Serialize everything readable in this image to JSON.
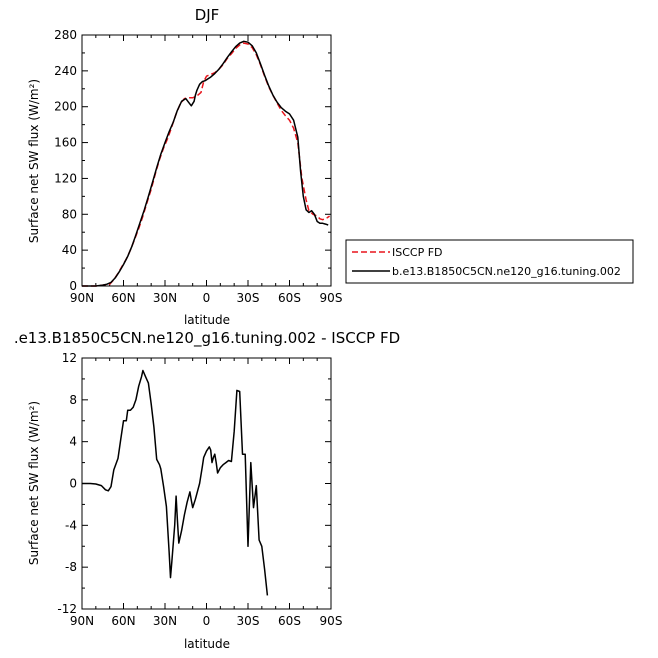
{
  "chart_data": [
    {
      "type": "line",
      "title": "DJF",
      "xlabel": "latitude",
      "ylabel": "Surface net SW flux (W/m²)",
      "xlim": [
        90,
        -90
      ],
      "ylim": [
        0,
        280
      ],
      "x_ticks": [
        "90N",
        "60N",
        "30N",
        "0",
        "30S",
        "60S",
        "90S"
      ],
      "y_ticks": [
        "0",
        "40",
        "80",
        "120",
        "160",
        "200",
        "240",
        "280"
      ],
      "grid": false,
      "legend_position": "right-bottom, outside plot",
      "series": [
        {
          "name": "ISCCP FD",
          "color": "#e8141b",
          "dash": "dashed",
          "points": [
            [
              90,
              0
            ],
            [
              85,
              0
            ],
            [
              80,
              0
            ],
            [
              75,
              1
            ],
            [
              70,
              2
            ],
            [
              67,
              7
            ],
            [
              64,
              14
            ],
            [
              61,
              22
            ],
            [
              58,
              30
            ],
            [
              55,
              40
            ],
            [
              52,
              52
            ],
            [
              49,
              64
            ],
            [
              46,
              78
            ],
            [
              43,
              93
            ],
            [
              40,
              108
            ],
            [
              37,
              125
            ],
            [
              34,
              141
            ],
            [
              31,
              154
            ],
            [
              28,
              165
            ],
            [
              25,
              178
            ],
            [
              22,
              192
            ],
            [
              19,
              203
            ],
            [
              16,
              209
            ],
            [
              13,
              210
            ],
            [
              10,
              210
            ],
            [
              7,
              212
            ],
            [
              4,
              216
            ],
            [
              2,
              228
            ],
            [
              0,
              234
            ],
            [
              -3,
              236
            ],
            [
              -6,
              238
            ],
            [
              -9,
              242
            ],
            [
              -12,
              247
            ],
            [
              -15,
              254
            ],
            [
              -18,
              259
            ],
            [
              -21,
              265
            ],
            [
              -24,
              269
            ],
            [
              -27,
              271
            ],
            [
              -30,
              270
            ],
            [
              -33,
              266
            ],
            [
              -36,
              258
            ],
            [
              -39,
              247
            ],
            [
              -42,
              234
            ],
            [
              -45,
              222
            ],
            [
              -48,
              213
            ],
            [
              -51,
              204
            ],
            [
              -54,
              196
            ],
            [
              -57,
              190
            ],
            [
              -60,
              185
            ],
            [
              -63,
              176
            ],
            [
              -66,
              160
            ],
            [
              -69,
              120
            ],
            [
              -72,
              96
            ],
            [
              -74,
              84
            ],
            [
              -77,
              80
            ],
            [
              -80,
              78
            ],
            [
              -82,
              75
            ],
            [
              -84,
              74
            ],
            [
              -87,
              76
            ],
            [
              -89,
              78
            ]
          ]
        },
        {
          "name": "b.e13.B1850C5CN.ne120_g16.tuning.002",
          "color": "#000000",
          "dash": "solid",
          "points": [
            [
              90,
              0
            ],
            [
              85,
              0
            ],
            [
              80,
              0
            ],
            [
              75,
              1
            ],
            [
              72,
              2
            ],
            [
              69,
              4
            ],
            [
              66,
              9
            ],
            [
              63,
              16
            ],
            [
              60,
              24
            ],
            [
              57,
              33
            ],
            [
              54,
              44
            ],
            [
              51,
              57
            ],
            [
              48,
              71
            ],
            [
              45,
              85
            ],
            [
              42,
              100
            ],
            [
              39,
              116
            ],
            [
              36,
              132
            ],
            [
              33,
              147
            ],
            [
              30,
              160
            ],
            [
              27,
              172
            ],
            [
              24,
              183
            ],
            [
              21,
              196
            ],
            [
              18,
              206
            ],
            [
              15,
              209
            ],
            [
              13,
              205
            ],
            [
              11,
              201
            ],
            [
              9,
              206
            ],
            [
              8,
              213
            ],
            [
              7,
              218
            ],
            [
              5,
              225
            ],
            [
              3,
              228
            ],
            [
              1,
              229
            ],
            [
              -1,
              231
            ],
            [
              -3,
              233
            ],
            [
              -6,
              237
            ],
            [
              -9,
              242
            ],
            [
              -12,
              248
            ],
            [
              -15,
              255
            ],
            [
              -18,
              261
            ],
            [
              -21,
              267
            ],
            [
              -24,
              271
            ],
            [
              -27,
              273
            ],
            [
              -30,
              272
            ],
            [
              -33,
              268
            ],
            [
              -36,
              260
            ],
            [
              -39,
              248
            ],
            [
              -42,
              235
            ],
            [
              -45,
              223
            ],
            [
              -48,
              213
            ],
            [
              -51,
              205
            ],
            [
              -54,
              199
            ],
            [
              -57,
              195
            ],
            [
              -60,
              192
            ],
            [
              -63,
              185
            ],
            [
              -66,
              166
            ],
            [
              -68,
              128
            ],
            [
              -70,
              100
            ],
            [
              -72,
              85
            ],
            [
              -74,
              82
            ],
            [
              -76,
              84
            ],
            [
              -78,
              80
            ],
            [
              -80,
              72
            ],
            [
              -82,
              70
            ],
            [
              -84,
              70
            ],
            [
              -86,
              69
            ],
            [
              -88,
              68
            ]
          ]
        }
      ]
    },
    {
      "type": "line",
      "title": ".e13.B1850C5CN.ne120_g16.tuning.002 - ISCCP FD",
      "xlabel": "latitude",
      "ylabel": "Surface net SW flux (W/m²)",
      "xlim": [
        90,
        -90
      ],
      "ylim": [
        -12,
        12
      ],
      "x_ticks": [
        "90N",
        "60N",
        "30N",
        "0",
        "30S",
        "60S",
        "90S"
      ],
      "y_ticks": [
        "-12",
        "-8",
        "-4",
        "0",
        "4",
        "8",
        "12"
      ],
      "grid": false,
      "series": [
        {
          "color": "#000000",
          "dash": "solid",
          "points": [
            [
              90,
              0
            ],
            [
              84,
              0
            ],
            [
              80,
              -0.05
            ],
            [
              76,
              -0.2
            ],
            [
              73,
              -0.6
            ],
            [
              71,
              -0.7
            ],
            [
              69,
              -0.3
            ],
            [
              67,
              1.3
            ],
            [
              64,
              2.4
            ],
            [
              62,
              4.2
            ],
            [
              60,
              6
            ],
            [
              58,
              6
            ],
            [
              57,
              7
            ],
            [
              55,
              7
            ],
            [
              53,
              7.3
            ],
            [
              51,
              8
            ],
            [
              49,
              9.3
            ],
            [
              47,
              10.2
            ],
            [
              46,
              10.8
            ],
            [
              44,
              10.2
            ],
            [
              42,
              9.6
            ],
            [
              40,
              7.6
            ],
            [
              38,
              5.4
            ],
            [
              36,
              2.3
            ],
            [
              34,
              1.8
            ],
            [
              33,
              1.4
            ],
            [
              31,
              -0.3
            ],
            [
              29,
              -2.2
            ],
            [
              27,
              -6.5
            ],
            [
              26,
              -9
            ],
            [
              25,
              -7.4
            ],
            [
              23,
              -4
            ],
            [
              22,
              -1.2
            ],
            [
              21,
              -3.5
            ],
            [
              20,
              -5.7
            ],
            [
              18,
              -4.5
            ],
            [
              16,
              -3
            ],
            [
              14,
              -1.8
            ],
            [
              12,
              -0.8
            ],
            [
              11,
              -1.6
            ],
            [
              10,
              -2.3
            ],
            [
              8,
              -1.5
            ],
            [
              6,
              -0.5
            ],
            [
              5,
              0
            ],
            [
              3,
              1.6
            ],
            [
              2,
              2.5
            ],
            [
              0,
              3.1
            ],
            [
              -2,
              3.5
            ],
            [
              -3,
              3.2
            ],
            [
              -4,
              2
            ],
            [
              -5,
              2.5
            ],
            [
              -6,
              2.8
            ],
            [
              -7,
              2
            ],
            [
              -8,
              1
            ],
            [
              -10,
              1.5
            ],
            [
              -12,
              1.8
            ],
            [
              -14,
              2
            ],
            [
              -16,
              2.2
            ],
            [
              -18,
              2.1
            ],
            [
              -20,
              5
            ],
            [
              -22,
              8.9
            ],
            [
              -24,
              8.8
            ],
            [
              -26,
              2.8
            ],
            [
              -28,
              2.8
            ],
            [
              -30,
              -6
            ],
            [
              -32,
              2
            ],
            [
              -34,
              -2.3
            ],
            [
              -36,
              -0.2
            ],
            [
              -38,
              -5.4
            ],
            [
              -40,
              -6
            ],
            [
              -42,
              -8.2
            ],
            [
              -44,
              -10.7
            ]
          ]
        }
      ]
    }
  ]
}
